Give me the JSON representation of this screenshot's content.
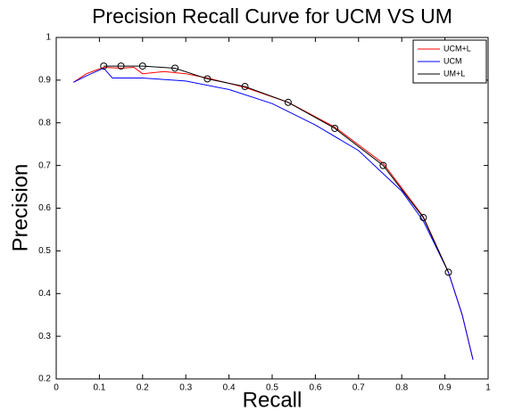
{
  "chart_data": {
    "type": "line",
    "title": "Precision Recall Curve for UCM VS UM",
    "xlabel": "Recall",
    "ylabel": "Precision",
    "xlim": [
      0,
      1
    ],
    "ylim": [
      0.2,
      1
    ],
    "xticks": [
      0,
      0.1,
      0.2,
      0.3,
      0.4,
      0.5,
      0.6,
      0.7,
      0.8,
      0.9,
      1
    ],
    "yticks": [
      0.2,
      0.3,
      0.4,
      0.5,
      0.6,
      0.7,
      0.8,
      0.9,
      1
    ],
    "legend": "upper right",
    "series": [
      {
        "name": "UCM+L",
        "color": "#ff0000",
        "x": [
          0.04,
          0.07,
          0.11,
          0.15,
          0.18,
          0.2,
          0.25,
          0.3,
          0.35,
          0.437,
          0.537,
          0.645,
          0.757,
          0.85,
          0.908,
          0.94,
          0.965
        ],
        "values": [
          0.895,
          0.915,
          0.93,
          0.928,
          0.93,
          0.915,
          0.92,
          0.915,
          0.905,
          0.883,
          0.848,
          0.79,
          0.705,
          0.58,
          0.45,
          0.35,
          0.245
        ]
      },
      {
        "name": "UCM",
        "color": "#0000ff",
        "x": [
          0.04,
          0.07,
          0.11,
          0.13,
          0.2,
          0.3,
          0.4,
          0.5,
          0.6,
          0.7,
          0.8,
          0.85,
          0.908,
          0.94,
          0.965
        ],
        "values": [
          0.895,
          0.91,
          0.928,
          0.905,
          0.905,
          0.898,
          0.878,
          0.845,
          0.795,
          0.735,
          0.64,
          0.57,
          0.45,
          0.35,
          0.245
        ]
      },
      {
        "name": "UM+L",
        "color": "#000000",
        "marker": "o",
        "x": [
          0.11,
          0.15,
          0.2,
          0.275,
          0.35,
          0.437,
          0.537,
          0.645,
          0.757,
          0.85,
          0.908
        ],
        "values": [
          0.933,
          0.933,
          0.933,
          0.928,
          0.903,
          0.885,
          0.848,
          0.787,
          0.7,
          0.578,
          0.45
        ]
      }
    ]
  }
}
